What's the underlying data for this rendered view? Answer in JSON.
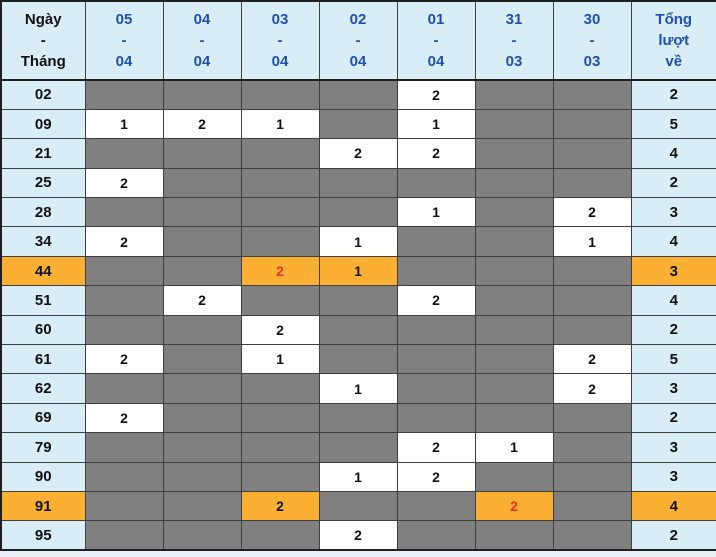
{
  "chart_data": {
    "type": "table",
    "title": "Lottery number frequency by date (lo-to statistics table)",
    "header": {
      "corner_lines": [
        "Ngày",
        "-",
        "Tháng"
      ],
      "date_columns": [
        {
          "day": "05",
          "sep": "-",
          "month": "04"
        },
        {
          "day": "04",
          "sep": "-",
          "month": "04"
        },
        {
          "day": "03",
          "sep": "-",
          "month": "04"
        },
        {
          "day": "02",
          "sep": "-",
          "month": "04"
        },
        {
          "day": "01",
          "sep": "-",
          "month": "04"
        },
        {
          "day": "31",
          "sep": "-",
          "month": "03"
        },
        {
          "day": "30",
          "sep": "-",
          "month": "03"
        }
      ],
      "total_lines": [
        "Tổng",
        "lượt",
        "về"
      ]
    },
    "rows": [
      {
        "label": "02",
        "cells": [
          "",
          "",
          "",
          "",
          "2",
          "",
          ""
        ],
        "total": "2",
        "highlight": false,
        "red_cells": []
      },
      {
        "label": "09",
        "cells": [
          "1",
          "2",
          "1",
          "",
          "1",
          "",
          ""
        ],
        "total": "5",
        "highlight": false,
        "red_cells": []
      },
      {
        "label": "21",
        "cells": [
          "",
          "",
          "",
          "2",
          "2",
          "",
          ""
        ],
        "total": "4",
        "highlight": false,
        "red_cells": []
      },
      {
        "label": "25",
        "cells": [
          "2",
          "",
          "",
          "",
          "",
          "",
          ""
        ],
        "total": "2",
        "highlight": false,
        "red_cells": []
      },
      {
        "label": "28",
        "cells": [
          "",
          "",
          "",
          "",
          "1",
          "",
          "2"
        ],
        "total": "3",
        "highlight": false,
        "red_cells": []
      },
      {
        "label": "34",
        "cells": [
          "2",
          "",
          "",
          "1",
          "",
          "",
          "1"
        ],
        "total": "4",
        "highlight": false,
        "red_cells": []
      },
      {
        "label": "44",
        "cells": [
          "",
          "",
          "2",
          "1",
          "",
          "",
          ""
        ],
        "total": "3",
        "highlight": true,
        "red_cells": [
          2
        ]
      },
      {
        "label": "51",
        "cells": [
          "",
          "2",
          "",
          "",
          "2",
          "",
          ""
        ],
        "total": "4",
        "highlight": false,
        "red_cells": []
      },
      {
        "label": "60",
        "cells": [
          "",
          "",
          "2",
          "",
          "",
          "",
          ""
        ],
        "total": "2",
        "highlight": false,
        "red_cells": []
      },
      {
        "label": "61",
        "cells": [
          "2",
          "",
          "1",
          "",
          "",
          "",
          "2"
        ],
        "total": "5",
        "highlight": false,
        "red_cells": []
      },
      {
        "label": "62",
        "cells": [
          "",
          "",
          "",
          "1",
          "",
          "",
          "2"
        ],
        "total": "3",
        "highlight": false,
        "red_cells": []
      },
      {
        "label": "69",
        "cells": [
          "2",
          "",
          "",
          "",
          "",
          "",
          ""
        ],
        "total": "2",
        "highlight": false,
        "red_cells": []
      },
      {
        "label": "79",
        "cells": [
          "",
          "",
          "",
          "",
          "2",
          "1",
          ""
        ],
        "total": "3",
        "highlight": false,
        "red_cells": []
      },
      {
        "label": "90",
        "cells": [
          "",
          "",
          "",
          "1",
          "2",
          "",
          ""
        ],
        "total": "3",
        "highlight": false,
        "red_cells": []
      },
      {
        "label": "91",
        "cells": [
          "",
          "",
          "2",
          "",
          "",
          "2",
          ""
        ],
        "total": "4",
        "highlight": true,
        "red_cells": [
          5
        ]
      },
      {
        "label": "95",
        "cells": [
          "",
          "",
          "",
          "2",
          "",
          "",
          ""
        ],
        "total": "2",
        "highlight": false,
        "red_cells": []
      }
    ]
  },
  "colors": {
    "header_bg": "#d9edf7",
    "empty_cell": "#808080",
    "value_cell": "#ffffff",
    "highlight_orange": "#fbb034",
    "blue_text": "#1d50b0",
    "dark_text": "#111111",
    "red_text": "#e8312a",
    "border": "#3f3f3f",
    "page_bg": "#e8eff5"
  }
}
